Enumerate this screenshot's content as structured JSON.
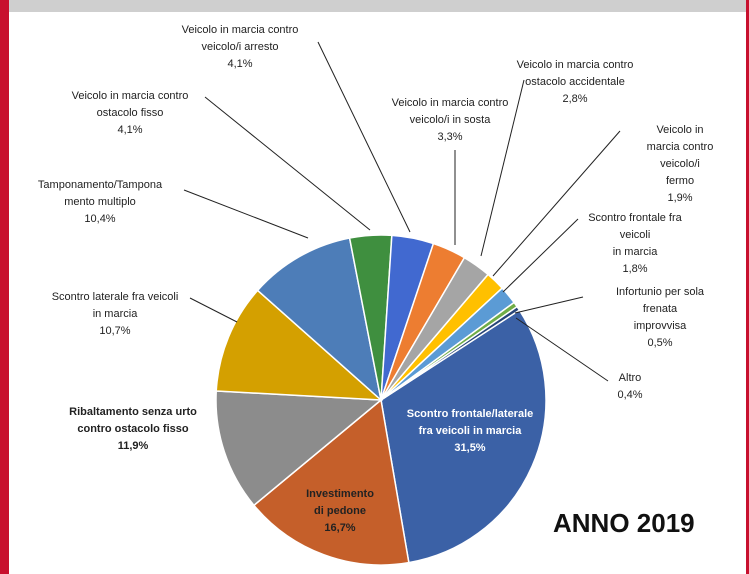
{
  "chart_data": {
    "type": "pie",
    "annotation": "ANNO 2019",
    "categories": [
      "Scontro frontale/laterale\nfra veicoli in marcia",
      "Investimento\ndi pedone",
      "Ribaltamento senza urto\ncontro ostacolo fisso",
      "Scontro laterale fra veicoli\nin marcia",
      "Tamponamento/Tampona\nmento multiplo",
      "Veicolo in marcia contro\nostacolo fisso",
      "Veicolo in marcia contro\nveicolo/i arresto",
      "Veicolo in marcia contro\nveicolo/i in sosta",
      "Veicolo in marcia contro\nostacolo accidentale",
      "Veicolo in marcia contro\nveicolo/i fermo",
      "Scontro frontale fra veicoli\nin marcia",
      "Infortunio per sola frenata\nimprovvisa",
      "Altro"
    ],
    "values": [
      31.5,
      16.7,
      11.9,
      10.7,
      10.4,
      4.1,
      4.1,
      3.3,
      2.8,
      1.9,
      1.8,
      0.5,
      0.4
    ],
    "value_labels": [
      "31,5%",
      "16,7%",
      "11,9%",
      "10,7%",
      "10,4%",
      "4,1%",
      "4,1%",
      "3,3%",
      "2,8%",
      "1,9%",
      "1,8%",
      "0,5%",
      "0,4%"
    ],
    "colors": [
      "#3b61a6",
      "#c55f2a",
      "#8c8c8c",
      "#d4a000",
      "#4d7db8",
      "#3f8f3f",
      "#4169d0",
      "#ed7d31",
      "#a5a5a5",
      "#ffc000",
      "#5b9bd5",
      "#70ad47",
      "#264478"
    ]
  }
}
